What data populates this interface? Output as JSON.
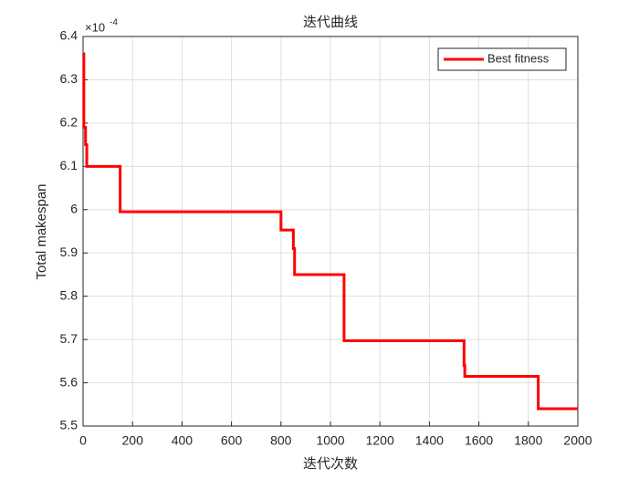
{
  "chart_data": {
    "type": "line",
    "title": "迭代曲线",
    "x_label": "迭代次数",
    "y_label": "Total makespan",
    "y_exponent_base": "×10",
    "y_exponent": "-4",
    "x": [
      1,
      3,
      3,
      10,
      10,
      15,
      15,
      150,
      150,
      800,
      800,
      850,
      850,
      855,
      855,
      1055,
      1055,
      1540,
      1540,
      1543,
      1543,
      1840,
      1840,
      2000
    ],
    "series": [
      {
        "name": "Best fitness",
        "color": "#ff0000",
        "values": [
          6.36,
          6.36,
          6.19,
          6.19,
          6.15,
          6.15,
          6.1,
          6.1,
          5.995,
          5.995,
          5.953,
          5.953,
          5.91,
          5.91,
          5.85,
          5.85,
          5.697,
          5.697,
          5.64,
          5.64,
          5.615,
          5.615,
          5.54,
          5.54
        ]
      }
    ],
    "xlim": [
      0,
      2000
    ],
    "xticks": [
      0,
      200,
      400,
      600,
      800,
      1000,
      1200,
      1400,
      1600,
      1800,
      2000
    ],
    "ylim": [
      5.5,
      6.4
    ],
    "yticks": [
      5.5,
      5.6,
      5.7,
      5.8,
      5.9,
      6,
      6.1,
      6.2,
      6.3,
      6.4
    ],
    "grid": true,
    "legend": "top-right"
  }
}
